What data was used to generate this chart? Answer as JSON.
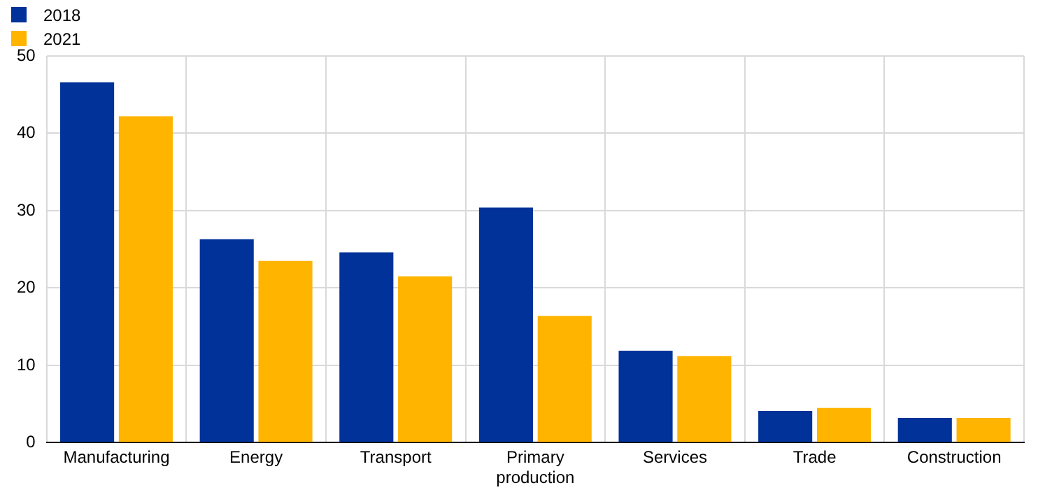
{
  "chart_data": {
    "type": "bar",
    "categories": [
      "Manufacturing",
      "Energy",
      "Transport",
      "Primary production",
      "Services",
      "Trade",
      "Construction"
    ],
    "series": [
      {
        "name": "2018",
        "color": "#003299",
        "values": [
          46.6,
          26.3,
          24.6,
          30.4,
          11.9,
          4.1,
          3.2
        ]
      },
      {
        "name": "2021",
        "color": "#ffb400",
        "values": [
          42.2,
          23.5,
          21.5,
          16.4,
          11.2,
          4.5,
          3.2
        ]
      }
    ],
    "ylim": [
      0,
      50
    ],
    "yticks": [
      0,
      10,
      20,
      30,
      40,
      50
    ],
    "grid": true,
    "legend": "top left"
  }
}
